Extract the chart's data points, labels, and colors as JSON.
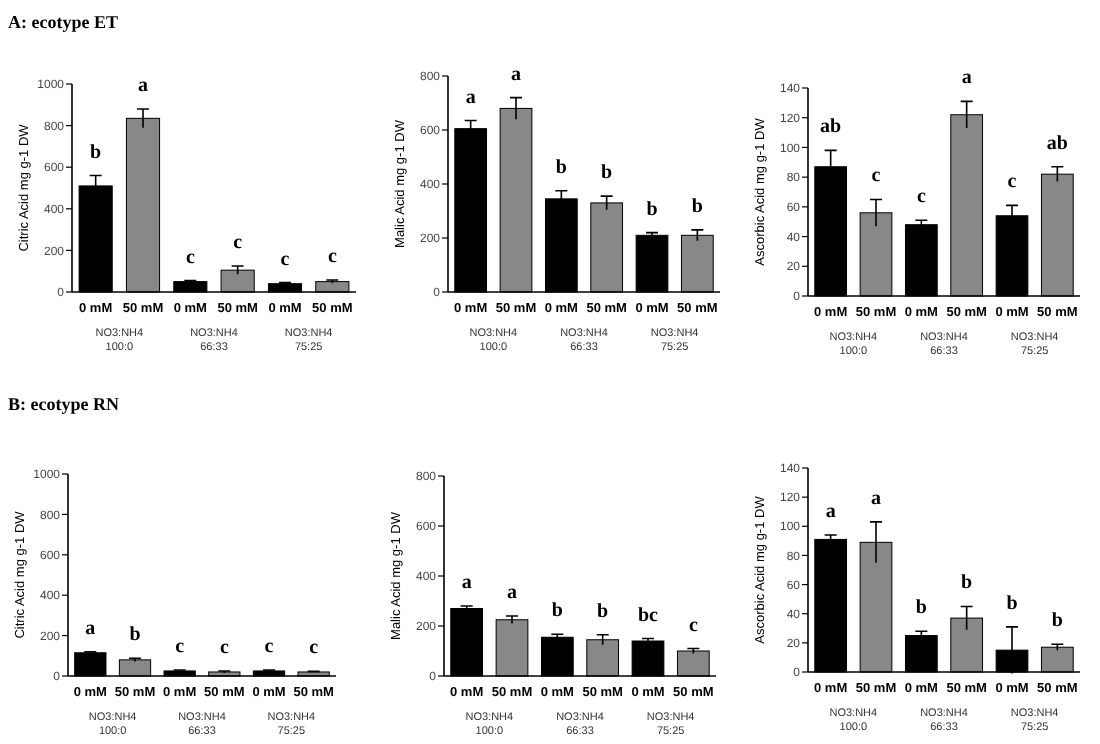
{
  "chart_data": [
    {
      "type": "bar",
      "title": "A: ecotype ET",
      "ylabel": "Citric Acid mg g-1 DW",
      "categories": [
        "0 mM",
        "50 mM",
        "0 mM",
        "50 mM",
        "0 mM",
        "50 mM"
      ],
      "values": [
        510,
        835,
        50,
        105,
        40,
        50
      ],
      "errors": [
        50,
        45,
        5,
        20,
        5,
        8
      ],
      "colors": [
        "#000000",
        "#888888",
        "#000000",
        "#888888",
        "#000000",
        "#888888"
      ],
      "ylim": [
        0,
        1000
      ],
      "yticks": [
        0,
        200,
        400,
        600,
        800,
        1000
      ],
      "annotations": [
        "b",
        "a",
        "c",
        "c",
        "c",
        "c",
        "NO3:NH4 100:0",
        "NO3:NH4 66:33",
        "NO3:NH4 75:25"
      ]
    },
    {
      "type": "bar",
      "ylabel": "Malic Acid mg g-1 DW",
      "categories": [
        "0 mM",
        "50 mM",
        "0 mM",
        "50 mM",
        "0 mM",
        "50 mM"
      ],
      "values": [
        605,
        680,
        345,
        330,
        210,
        210
      ],
      "errors": [
        30,
        40,
        30,
        25,
        10,
        20
      ],
      "colors": [
        "#000000",
        "#888888",
        "#000000",
        "#888888",
        "#000000",
        "#888888"
      ],
      "ylim": [
        0,
        800
      ],
      "yticks": [
        0,
        200,
        400,
        600,
        800
      ],
      "annotations": [
        "a",
        "a",
        "b",
        "b",
        "b",
        "b",
        "NO3:NH4 100:0",
        "NO3:NH4 66:33",
        "NO3:NH4 75:25"
      ]
    },
    {
      "type": "bar",
      "ylabel": "Ascorbic Acid mg g-1 DW",
      "categories": [
        "0 mM",
        "50 mM",
        "0 mM",
        "50 mM",
        "0 mM",
        "50 mM"
      ],
      "values": [
        87,
        56,
        48,
        122,
        54,
        82
      ],
      "errors": [
        11,
        9,
        3,
        9,
        7,
        5
      ],
      "colors": [
        "#000000",
        "#888888",
        "#000000",
        "#888888",
        "#000000",
        "#888888"
      ],
      "ylim": [
        0,
        140
      ],
      "yticks": [
        0,
        20,
        40,
        60,
        80,
        100,
        120,
        140
      ],
      "annotations": [
        "ab",
        "c",
        "c",
        "a",
        "c",
        "ab",
        "NO3:NH4 100:0",
        "NO3:NH4 66:33",
        "NO3:NH4 75:25"
      ]
    },
    {
      "type": "bar",
      "title": "B: ecotype RN",
      "ylabel": "Citric Acid mg g-1 DW",
      "categories": [
        "0 mM",
        "50 mM",
        "0 mM",
        "50 mM",
        "0 mM",
        "50 mM"
      ],
      "values": [
        115,
        80,
        25,
        20,
        25,
        20
      ],
      "errors": [
        5,
        8,
        5,
        5,
        5,
        3
      ],
      "colors": [
        "#000000",
        "#888888",
        "#000000",
        "#888888",
        "#000000",
        "#888888"
      ],
      "ylim": [
        0,
        1000
      ],
      "yticks": [
        0,
        200,
        400,
        600,
        800,
        1000
      ],
      "annotations": [
        "a",
        "b",
        "c",
        "c",
        "c",
        "c",
        "NO3:NH4 100:0",
        "NO3:NH4 66:33",
        "NO3:NH4 75:25"
      ]
    },
    {
      "type": "bar",
      "ylabel": "Malic Acid mg g-1 DW",
      "categories": [
        "0 mM",
        "50 mM",
        "0 mM",
        "50 mM",
        "0 mM",
        "50 mM"
      ],
      "values": [
        270,
        225,
        155,
        145,
        140,
        100
      ],
      "errors": [
        10,
        15,
        12,
        20,
        10,
        10
      ],
      "colors": [
        "#000000",
        "#888888",
        "#000000",
        "#888888",
        "#000000",
        "#888888"
      ],
      "ylim": [
        0,
        800
      ],
      "yticks": [
        0,
        200,
        400,
        600,
        800
      ],
      "annotations": [
        "a",
        "a",
        "b",
        "b",
        "bc",
        "c",
        "NO3:NH4 100:0",
        "NO3:NH4 66:33",
        "NO3:NH4 75:25"
      ]
    },
    {
      "type": "bar",
      "ylabel": "Ascorbic Acid mg g-1 DW",
      "categories": [
        "0 mM",
        "50 mM",
        "0 mM",
        "50 mM",
        "0 mM",
        "50 mM"
      ],
      "values": [
        91,
        89,
        25,
        37,
        15,
        17
      ],
      "errors": [
        3,
        14,
        3,
        8,
        16,
        2
      ],
      "colors": [
        "#000000",
        "#888888",
        "#000000",
        "#888888",
        "#000000",
        "#888888"
      ],
      "ylim": [
        0,
        140
      ],
      "yticks": [
        0,
        20,
        40,
        60,
        80,
        100,
        120,
        140
      ],
      "annotations": [
        "a",
        "a",
        "b",
        "b",
        "b",
        "b",
        "NO3:NH4 100:0",
        "NO3:NH4 66:33",
        "NO3:NH4 75:25"
      ]
    }
  ]
}
